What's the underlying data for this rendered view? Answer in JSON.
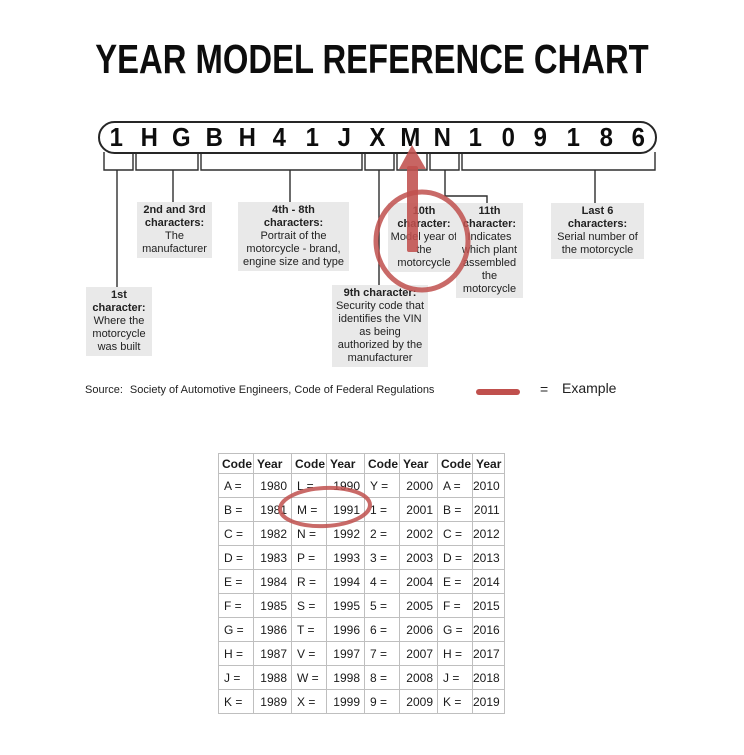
{
  "title": "YEAR MODEL REFERENCE CHART",
  "vin": {
    "characters": [
      "1",
      "H",
      "G",
      "B",
      "H",
      "4",
      "1",
      "J",
      "X",
      "M",
      "N",
      "1",
      "0",
      "9",
      "1",
      "8",
      "6"
    ]
  },
  "callouts": {
    "first": {
      "heading": "1st character:",
      "body": "Where the motorcycle was built"
    },
    "second_third": {
      "heading": "2nd and 3rd characters:",
      "body": "The manufacturer"
    },
    "fourth_eighth": {
      "heading": "4th - 8th characters:",
      "body": "Portrait of the motorcycle - brand, engine size and type"
    },
    "ninth": {
      "heading": "9th character:",
      "body": "Security code that identifies the VIN as being authorized by the manufacturer"
    },
    "tenth": {
      "heading": "10th character:",
      "body": "Model year of the motorcycle"
    },
    "eleventh": {
      "heading": "11th character:",
      "body": "Indicates which plant assembled the motorcycle"
    },
    "last_six": {
      "heading": "Last 6 characters:",
      "body": "Serial number of the motorcycle"
    }
  },
  "source": {
    "label": "Source:",
    "text": "Society of Automotive Engineers, Code of Federal Regulations"
  },
  "legend": {
    "equals": "=",
    "label": "Example"
  },
  "year_table": {
    "headers": [
      "Code",
      "Year",
      "Code",
      "Year",
      "Code",
      "Year",
      "Code",
      "Year"
    ],
    "rows": [
      [
        "A =",
        "1980",
        "L =",
        "1990",
        "Y =",
        "2000",
        "A =",
        "2010"
      ],
      [
        "B =",
        "1981",
        "M =",
        "1991",
        "1 =",
        "2001",
        "B =",
        "2011"
      ],
      [
        "C =",
        "1982",
        "N =",
        "1992",
        "2 =",
        "2002",
        "C =",
        "2012"
      ],
      [
        "D =",
        "1983",
        "P =",
        "1993",
        "3 =",
        "2003",
        "D =",
        "2013"
      ],
      [
        "E =",
        "1984",
        "R =",
        "1994",
        "4 =",
        "2004",
        "E =",
        "2014"
      ],
      [
        "F =",
        "1985",
        "S =",
        "1995",
        "5 =",
        "2005",
        "F =",
        "2015"
      ],
      [
        "G =",
        "1986",
        "T =",
        "1996",
        "6 =",
        "2006",
        "G =",
        "2016"
      ],
      [
        "H =",
        "1987",
        "V =",
        "1997",
        "7 =",
        "2007",
        "H =",
        "2017"
      ],
      [
        "J =",
        "1988",
        "W =",
        "1998",
        "8 =",
        "2008",
        "J =",
        "2018"
      ],
      [
        "K =",
        "1989",
        "X =",
        "1999",
        "9 =",
        "2009",
        "K =",
        "2019"
      ]
    ],
    "highlighted_cell": "M = 1991"
  },
  "colors": {
    "accent_red": "#c0504d",
    "callout_bg": "#e9e9e9",
    "table_border": "#bfbfbf"
  }
}
